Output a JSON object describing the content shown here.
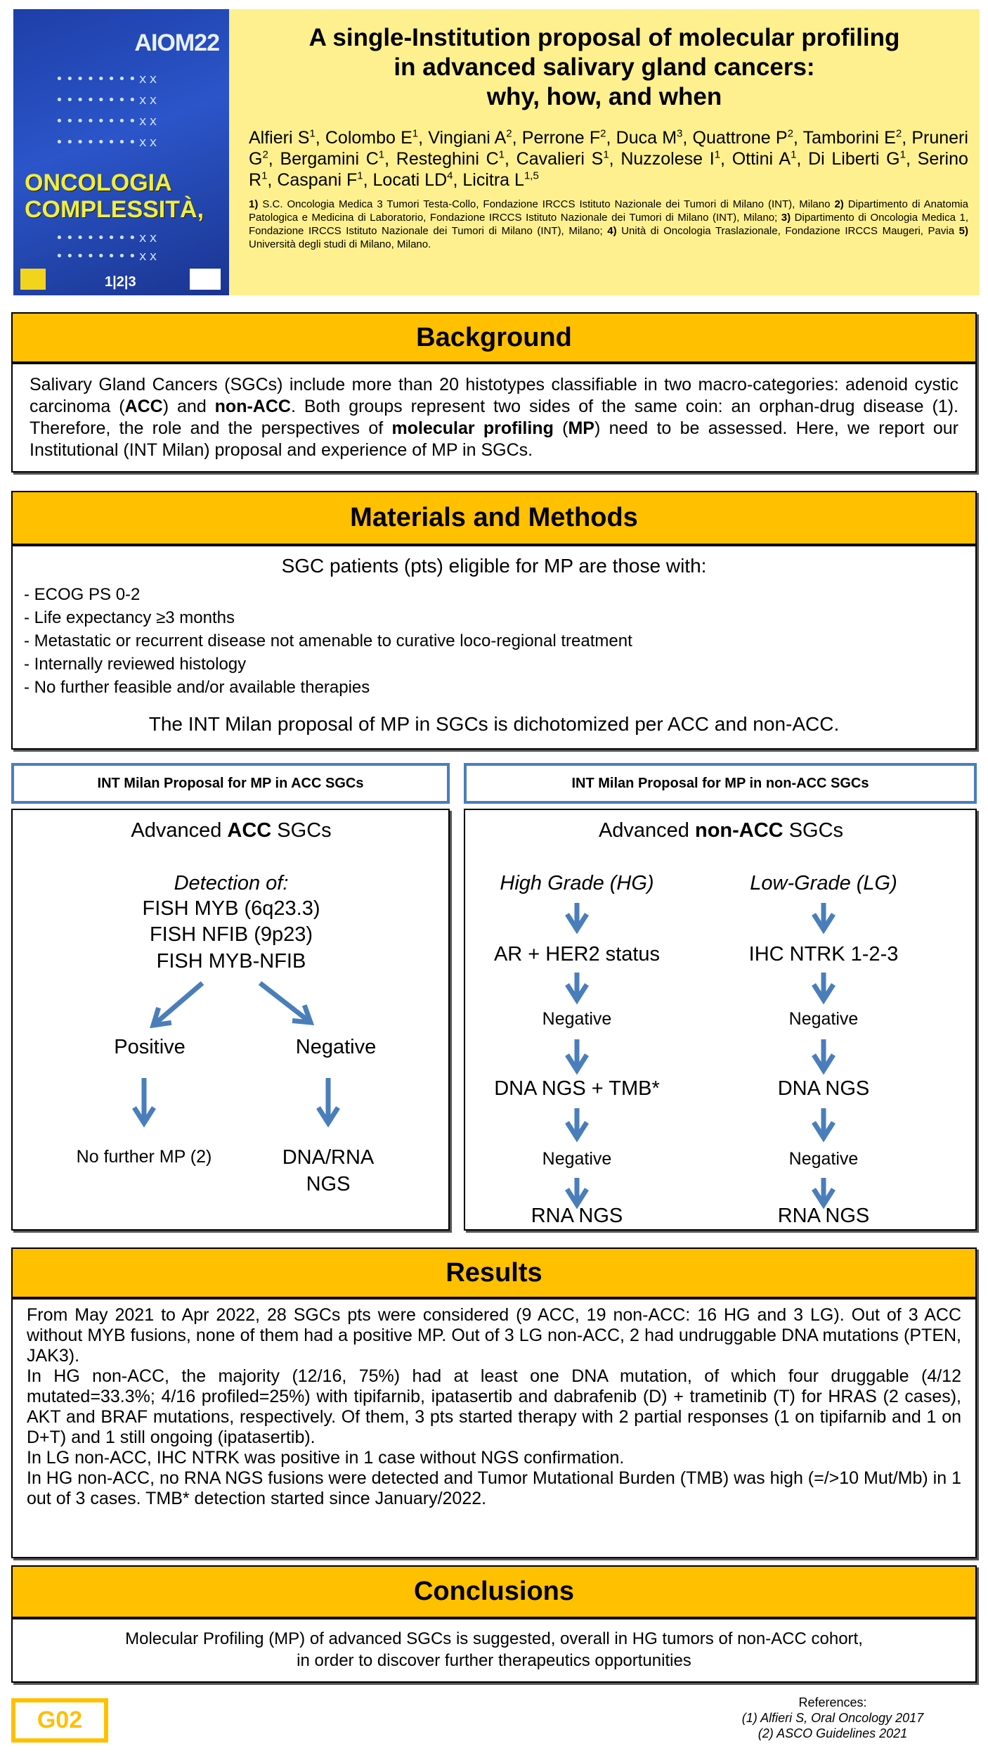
{
  "cover": {
    "brand": "AIOM22",
    "line1": "ONCOLOGIA",
    "line2": "COMPLESSITÀ,",
    "dates": "1|2|3",
    "dots": "••••••••xx"
  },
  "header": {
    "title": [
      "A single-Institution proposal of molecular profiling",
      "in advanced salivary gland cancers:",
      "why, how, and when"
    ],
    "authors": [
      {
        "n": "Alfieri S",
        "s": "1"
      },
      {
        "n": "Colombo E",
        "s": "1"
      },
      {
        "n": "Vingiani A",
        "s": "2"
      },
      {
        "n": "Perrone F",
        "s": "2"
      },
      {
        "n": "Duca M",
        "s": "3"
      },
      {
        "n": "Quattrone P",
        "s": "2"
      },
      {
        "n": "Tamborini E",
        "s": "2"
      },
      {
        "n": "Pruneri G",
        "s": "2"
      },
      {
        "n": "Bergamini C",
        "s": "1"
      },
      {
        "n": "Resteghini C",
        "s": "1"
      },
      {
        "n": "Cavalieri S",
        "s": "1"
      },
      {
        "n": "Nuzzolese I",
        "s": "1"
      },
      {
        "n": "Ottini A",
        "s": "1"
      },
      {
        "n": "Di Liberti G",
        "s": "1"
      },
      {
        "n": "Serino R",
        "s": "1"
      },
      {
        "n": "Caspani F",
        "s": "1"
      },
      {
        "n": "Locati LD",
        "s": "4"
      },
      {
        "n": "Licitra L",
        "s": "1,5"
      }
    ],
    "affiliations": [
      {
        "k": "1)",
        "t": " S.C. Oncologia Medica 3 Tumori Testa-Collo, Fondazione IRCCS Istituto Nazionale dei Tumori di Milano (INT), Milano "
      },
      {
        "k": "2)",
        "t": " Dipartimento di Anatomia Patologica e Medicina di Laboratorio, Fondazione IRCCS Istituto Nazionale dei Tumori di Milano (INT), Milano; "
      },
      {
        "k": "3)",
        "t": " Dipartimento di Oncologia Medica 1, Fondazione IRCCS Istituto Nazionale dei Tumori di Milano (INT), Milano; "
      },
      {
        "k": "4)",
        "t": " Unità di Oncologia Traslazionale, Fondazione IRCCS Maugeri, Pavia "
      },
      {
        "k": "5)",
        "t": " Università degli studi di Milano, Milano."
      }
    ]
  },
  "background": {
    "heading": "Background",
    "segments": [
      {
        "t": "Salivary Gland Cancers (SGCs) include more than 20 histotypes classifiable in two macro-categories: adenoid cystic carcinoma ("
      },
      {
        "t": "ACC",
        "b": true
      },
      {
        "t": ") and "
      },
      {
        "t": "non-ACC",
        "b": true
      },
      {
        "t": ". Both groups represent two sides of the same coin: an orphan-drug disease (1). Therefore, the role and the perspectives of "
      },
      {
        "t": "molecular profiling",
        "b": true
      },
      {
        "t": " ("
      },
      {
        "t": "MP",
        "b": true
      },
      {
        "t": ") need to be assessed. Here, we report our Institutional (INT Milan) proposal and experience of MP in SGCs."
      }
    ]
  },
  "methods": {
    "heading": "Materials and Methods",
    "intro": "SGC patients (pts) eligible for MP are those with:",
    "criteria": [
      "- ECOG PS 0-2",
      "- Life expectancy ≥3 months",
      "- Metastatic or recurrent disease not amenable to curative loco-regional treatment",
      "- Internally reviewed histology",
      "- No further feasible and/or available therapies"
    ],
    "closing": "The INT Milan proposal of MP in SGCs is dichotomized per ACC and non-ACC."
  },
  "acc": {
    "heading": "INT Milan Proposal for MP in ACC SGCs",
    "title_pre": "Advanced ",
    "title_bold": "ACC",
    "title_post": " SGCs",
    "detection": "Detection of:",
    "tests": [
      "FISH  MYB (6q23.3)",
      "FISH NFIB (9p23)",
      "FISH MYB-NFIB"
    ],
    "positive": "Positive",
    "negative": "Negative",
    "positive_result": "No further MP (2)",
    "negative_result": [
      "DNA/RNA",
      "NGS"
    ]
  },
  "nonacc": {
    "heading": "INT Milan Proposal for MP in non-ACC SGCs",
    "title_pre": "Advanced ",
    "title_bold": "non-ACC",
    "title_post": " SGCs",
    "hg": [
      "High Grade (HG)",
      "AR + HER2 status",
      "Negative",
      "DNA NGS + TMB*",
      "Negative",
      "RNA NGS"
    ],
    "lg": [
      "Low-Grade (LG)",
      "IHC NTRK 1-2-3",
      "Negative",
      "DNA NGS",
      "Negative",
      "RNA NGS"
    ]
  },
  "results": {
    "heading": "Results",
    "paragraphs": [
      "From May 2021 to Apr 2022, 28 SGCs pts were considered (9 ACC, 19 non-ACC: 16 HG and 3 LG). Out of 3 ACC without MYB fusions, none of them had a positive MP. Out of 3 LG non-ACC, 2 had undruggable DNA mutations (PTEN, JAK3).",
      "In HG non-ACC, the majority (12/16, 75%) had at least one DNA mutation, of which four druggable (4/12 mutated=33.3%; 4/16 profiled=25%) with tipifarnib, ipatasertib and dabrafenib (D) + trametinib (T) for HRAS (2 cases), AKT and BRAF mutations, respectively. Of them, 3 pts started therapy with 2 partial responses (1 on tipifarnib and 1 on D+T) and 1 still ongoing (ipatasertib).",
      "In LG non-ACC, IHC NTRK was positive in 1 case without NGS confirmation.",
      "In HG non-ACC, no RNA NGS fusions were detected and Tumor Mutational Burden (TMB) was high (=/>10 Mut/Mb) in 1 out of 3 cases. TMB* detection started since January/2022."
    ]
  },
  "conclusions": {
    "heading": "Conclusions",
    "lines": [
      "Molecular Profiling (MP) of advanced SGCs is suggested, overall in HG tumors of non-ACC cohort,",
      "in order to discover further therapeutics opportunities"
    ]
  },
  "footer": {
    "code": "G02",
    "references_label": "References:",
    "references": [
      "(1) Alfieri S, Oral Oncology 2017",
      "(2) ASCO Guidelines 2021"
    ]
  },
  "colors": {
    "header_bg": "#fff08f",
    "section_bar": "#ffc000",
    "arrow": "#4a7ebb",
    "panel_border": "#4a7ebb",
    "code_box": "#ffc000"
  }
}
